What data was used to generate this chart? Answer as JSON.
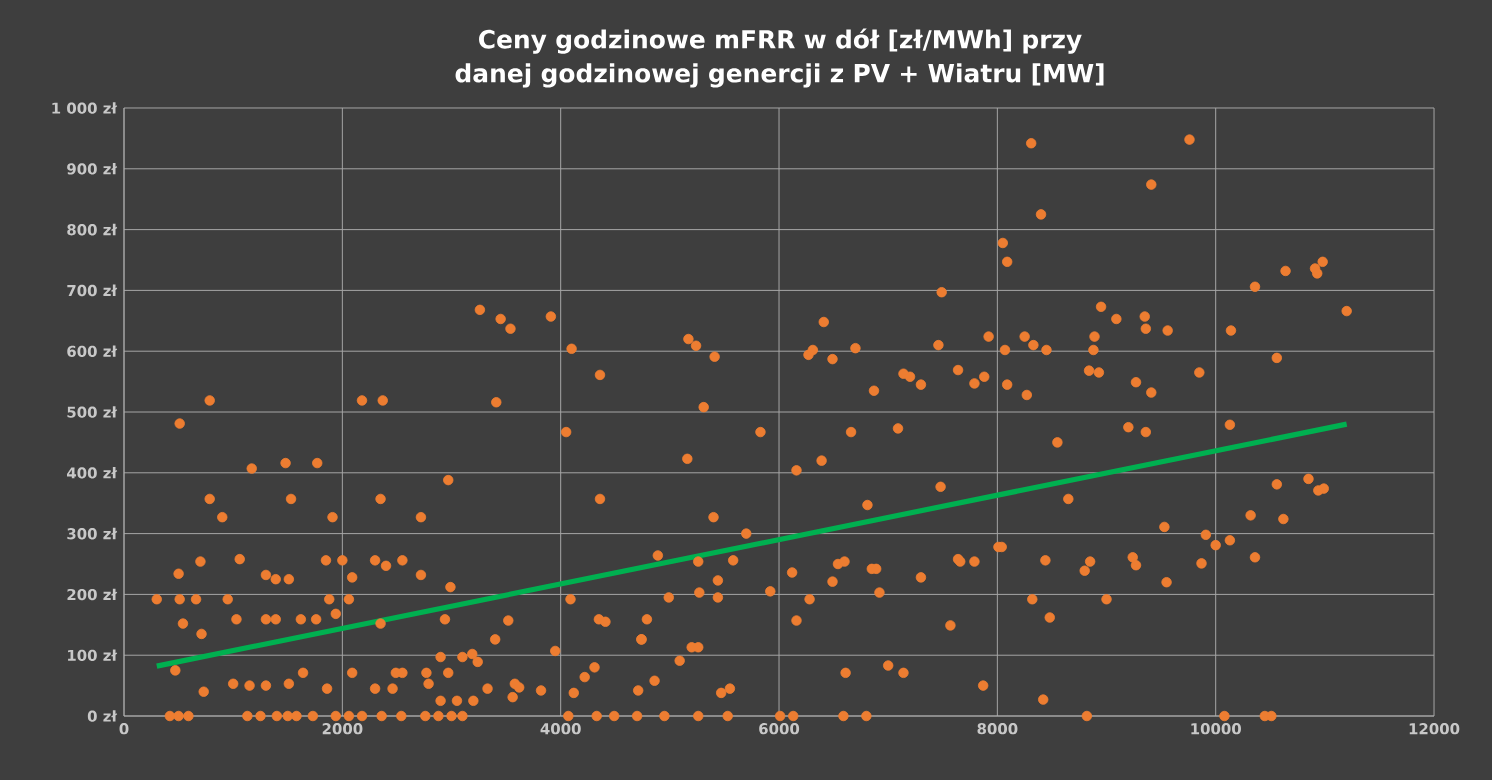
{
  "chart_data": {
    "type": "scatter",
    "title": "Ceny godzinowe mFRR w dół [zł/MWh] przy danej godzinowej genercji z PV + Wiatru [MW]",
    "xlim": [
      0,
      12000
    ],
    "ylim": [
      0,
      1000
    ],
    "xticks": [
      0,
      2000,
      4000,
      6000,
      8000,
      10000,
      12000
    ],
    "yticks": [
      {
        "value": 0,
        "label": "0 zł"
      },
      {
        "value": 100,
        "label": "100 zł"
      },
      {
        "value": 200,
        "label": "200 zł"
      },
      {
        "value": 300,
        "label": "300 zł"
      },
      {
        "value": 400,
        "label": "400 zł"
      },
      {
        "value": 500,
        "label": "500 zł"
      },
      {
        "value": 600,
        "label": "600 zł"
      },
      {
        "value": 700,
        "label": "700 zł"
      },
      {
        "value": 800,
        "label": "800 zł"
      },
      {
        "value": 900,
        "label": "900 zł"
      },
      {
        "value": 1000,
        "label": "1 000 zł"
      }
    ],
    "grid": true,
    "series": [
      {
        "type": "scatter",
        "color": "#ed7d31",
        "marker": "circle",
        "x": [
          300,
          510,
          785,
          470,
          420,
          500,
          590,
          540,
          500,
          700,
          710,
          785,
          900,
          510,
          660,
          730,
          950,
          1030,
          1060,
          1000,
          1170,
          1150,
          1300,
          1130,
          1250,
          1400,
          1500,
          1580,
          1300,
          1390,
          1510,
          1300,
          1390,
          1480,
          1530,
          1510,
          1640,
          1620,
          1760,
          1770,
          1910,
          1850,
          1880,
          1940,
          1860,
          1730,
          1940,
          2060,
          2180,
          2360,
          2000,
          2090,
          2060,
          2090,
          2180,
          2370,
          2300,
          2350,
          2350,
          2300,
          2400,
          2460,
          2490,
          2550,
          2550,
          2540,
          2720,
          2720,
          2760,
          2880,
          3000,
          3100,
          2770,
          2790,
          2940,
          2970,
          2990,
          2900,
          3100,
          2970,
          2900,
          3050,
          3200,
          3260,
          3410,
          3450,
          3540,
          3400,
          3520,
          3190,
          3240,
          3330,
          3580,
          3910,
          4100,
          4360,
          4050,
          4360,
          4090,
          3950,
          4350,
          4410,
          3820,
          3620,
          3560,
          4120,
          4220,
          4310,
          4070,
          4330,
          4490,
          4700,
          4740,
          4950,
          4740,
          4790,
          4710,
          4860,
          4890,
          4990,
          5090,
          5200,
          5260,
          5270,
          5170,
          5240,
          5410,
          5310,
          5160,
          5400,
          5260,
          5440,
          5440,
          5470,
          5550,
          5260,
          5530,
          5580,
          5700,
          5830,
          5920,
          6010,
          6130,
          6120,
          6160,
          6160,
          6280,
          6270,
          6310,
          6410,
          6490,
          6390,
          6490,
          6610,
          6590,
          6800,
          6540,
          6600,
          6660,
          6700,
          6810,
          6850,
          6890,
          6870,
          6920,
          7000,
          7140,
          7090,
          7140,
          7200,
          7300,
          7300,
          7460,
          7490,
          7480,
          7570,
          7640,
          7660,
          7640,
          7790,
          7790,
          7880,
          7920,
          7870,
          8010,
          8310,
          9760,
          9410,
          8400,
          8050,
          8090,
          10360,
          10640,
          10910,
          10980,
          10930,
          11200,
          8950,
          9090,
          9350,
          9360,
          9560,
          10140,
          8250,
          8330,
          8070,
          8450,
          8890,
          8880,
          8840,
          8930,
          8090,
          8270,
          9270,
          9410,
          9850,
          10560,
          9200,
          9360,
          10130,
          8550,
          8650,
          10560,
          10850,
          10940,
          10990,
          9530,
          10320,
          10620,
          9910,
          10000,
          10130,
          8040,
          8440,
          8800,
          8850,
          9240,
          9270,
          9550,
          9870,
          10360,
          8320,
          8480,
          9000,
          8420,
          8820,
          10080,
          10450,
          10510
        ],
        "values": [
          192,
          481,
          519,
          75,
          0,
          0,
          0,
          152,
          234,
          254,
          135,
          357,
          327,
          192,
          192,
          40,
          192,
          159,
          258,
          53,
          407,
          50,
          50,
          0,
          0,
          0,
          0,
          0,
          232,
          225,
          225,
          159,
          159,
          416,
          357,
          53,
          71,
          159,
          159,
          416,
          327,
          256,
          192,
          168,
          45,
          0,
          0,
          0,
          0,
          0,
          256,
          228,
          192,
          71,
          519,
          519,
          45,
          357,
          152,
          256,
          247,
          45,
          71,
          71,
          256,
          0,
          327,
          232,
          0,
          0,
          0,
          0,
          71,
          53,
          159,
          388,
          212,
          97,
          97,
          71,
          25,
          25,
          25,
          668,
          516,
          653,
          637,
          126,
          157,
          102,
          89,
          45,
          53,
          657,
          604,
          561,
          467,
          357,
          192,
          107,
          159,
          155,
          42,
          47,
          31,
          38,
          64,
          80,
          0,
          0,
          0,
          0,
          126,
          0,
          126,
          159,
          42,
          58,
          264,
          195,
          91,
          113,
          113,
          203,
          620,
          609,
          591,
          508,
          423,
          327,
          254,
          223,
          195,
          38,
          45,
          0,
          0,
          256,
          300,
          467,
          205,
          0,
          0,
          236,
          404,
          157,
          192,
          594,
          602,
          648,
          587,
          420,
          221,
          71,
          0,
          0,
          250,
          254,
          467,
          605,
          347,
          242,
          242,
          535,
          203,
          83,
          71,
          473,
          563,
          558,
          545,
          228,
          610,
          697,
          377,
          149,
          258,
          254,
          569,
          254,
          547,
          558,
          624,
          50,
          278,
          942,
          948,
          874,
          825,
          778,
          747,
          706,
          732,
          736,
          747,
          728,
          666,
          673,
          653,
          657,
          637,
          634,
          634,
          624,
          610,
          602,
          602,
          624,
          602,
          568,
          565,
          545,
          528,
          549,
          532,
          565,
          589,
          475,
          467,
          479,
          450,
          357,
          381,
          390,
          371,
          374,
          311,
          330,
          324,
          298,
          281,
          289,
          278,
          256,
          239,
          254,
          261,
          248,
          220,
          251,
          261,
          192,
          162,
          192,
          27,
          0,
          0,
          0,
          0
        ]
      },
      {
        "type": "line",
        "color": "#00b050",
        "marker": "none",
        "x": [
          300,
          11200
        ],
        "values": [
          82,
          480
        ]
      }
    ]
  }
}
